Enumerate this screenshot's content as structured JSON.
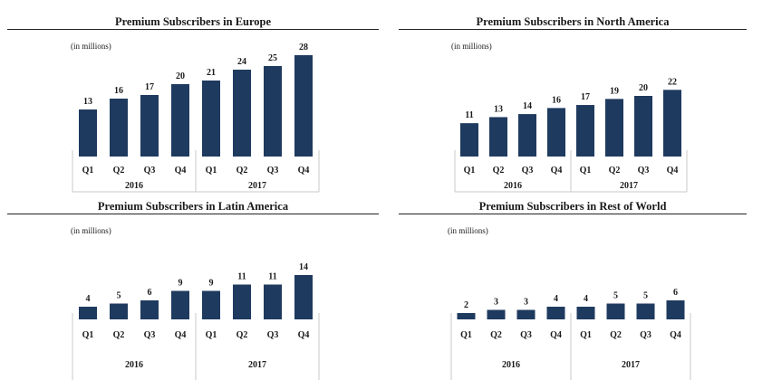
{
  "colors": {
    "bar": "#1f3a5f",
    "axis": "#c8c8c8",
    "text": "#1a1a1a"
  },
  "chart_data": [
    {
      "type": "bar",
      "title": "Premium Subscribers in Europe",
      "unit": "(in millions)",
      "categories": [
        "Q1",
        "Q2",
        "Q3",
        "Q4",
        "Q1",
        "Q2",
        "Q3",
        "Q4"
      ],
      "groups": [
        {
          "label": "2016",
          "count": 4
        },
        {
          "label": "2017",
          "count": 4
        }
      ],
      "values": [
        13,
        16,
        17,
        20,
        21,
        24,
        25,
        28
      ],
      "ylim": [
        0,
        30
      ]
    },
    {
      "type": "bar",
      "title": "Premium Subscribers in North America",
      "unit": "(in millions)",
      "categories": [
        "Q1",
        "Q2",
        "Q3",
        "Q4",
        "Q1",
        "Q2",
        "Q3",
        "Q4"
      ],
      "groups": [
        {
          "label": "2016",
          "count": 4
        },
        {
          "label": "2017",
          "count": 4
        }
      ],
      "values": [
        11,
        13,
        14,
        16,
        17,
        19,
        20,
        22
      ],
      "ylim": [
        0,
        30
      ]
    },
    {
      "type": "bar",
      "title": "Premium Subscribers in Latin America",
      "unit": "(in millions)",
      "categories": [
        "Q1",
        "Q2",
        "Q3",
        "Q4",
        "Q1",
        "Q2",
        "Q3",
        "Q4"
      ],
      "groups": [
        {
          "label": "2016",
          "count": 4
        },
        {
          "label": "2017",
          "count": 4
        }
      ],
      "values": [
        4,
        5,
        6,
        9,
        9,
        11,
        11,
        14
      ],
      "ylim": [
        0,
        30
      ]
    },
    {
      "type": "bar",
      "title": "Premium Subscribers in Rest of World",
      "unit": "(in millions)",
      "categories": [
        "Q1",
        "Q2",
        "Q3",
        "Q4",
        "Q1",
        "Q2",
        "Q3",
        "Q4"
      ],
      "groups": [
        {
          "label": "2016",
          "count": 4
        },
        {
          "label": "2017",
          "count": 4
        }
      ],
      "values": [
        2,
        3,
        3,
        4,
        4,
        5,
        5,
        6
      ],
      "ylim": [
        0,
        30
      ]
    }
  ]
}
